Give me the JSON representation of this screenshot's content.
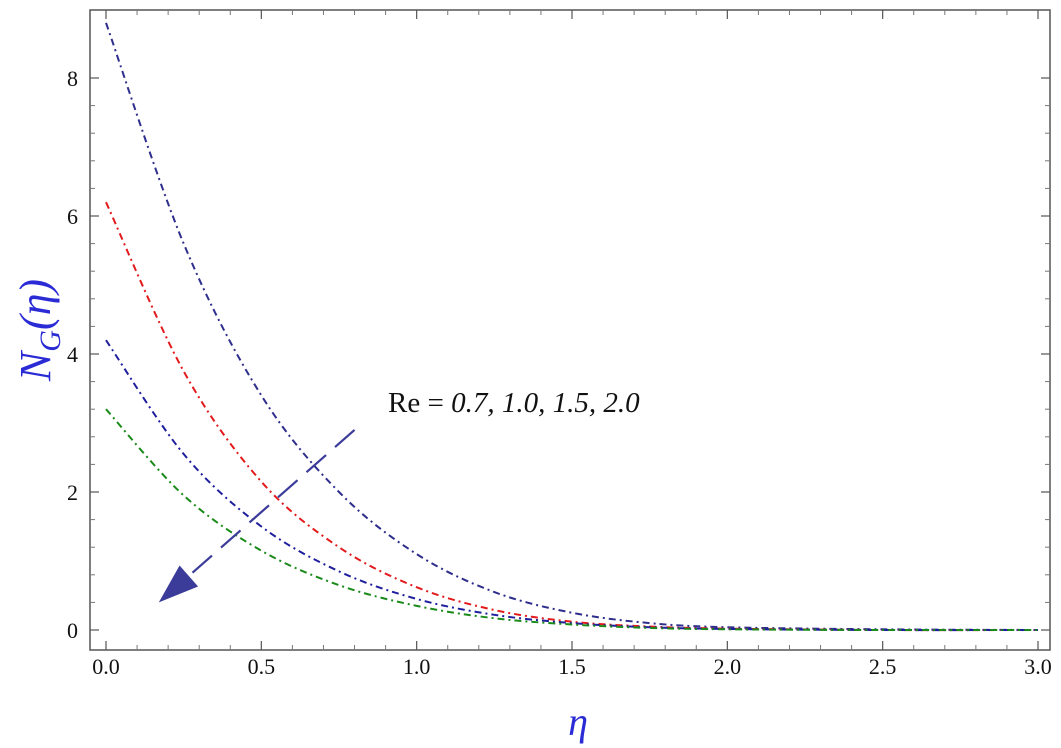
{
  "chart_data": {
    "type": "line",
    "xlabel": "η",
    "ylabel": {
      "main": "N",
      "sub": "G",
      "arg": "(η)"
    },
    "xlim": [
      0.0,
      3.0
    ],
    "ylim": [
      -0.2,
      9.0
    ],
    "xticks": [
      "0.0",
      "0.5",
      "1.0",
      "1.5",
      "2.0",
      "2.5",
      "3.0"
    ],
    "xtick_values": [
      0.0,
      0.5,
      1.0,
      1.5,
      2.0,
      2.5,
      3.0
    ],
    "yticks": [
      "0",
      "2",
      "4",
      "6",
      "8"
    ],
    "ytick_values": [
      0,
      2,
      4,
      6,
      8
    ],
    "grid": false,
    "annotation": {
      "prefix": "Re = ",
      "values": "0.7, 1.0, 1.5, 2.0",
      "arrow_from": [
        0.8,
        2.9
      ],
      "arrow_to": [
        0.17,
        0.4
      ]
    },
    "series": [
      {
        "color": "#2e2e8c",
        "x": [
          0.0,
          0.25,
          0.5,
          0.75,
          1.0,
          1.25,
          1.5,
          1.75,
          2.0,
          2.5,
          3.0
        ],
        "values": [
          8.8,
          5.6,
          3.4,
          2.0,
          1.1,
          0.55,
          0.25,
          0.1,
          0.04,
          0.01,
          0.0
        ]
      },
      {
        "color": "#e31a1c",
        "x": [
          0.0,
          0.25,
          0.5,
          0.75,
          1.0,
          1.25,
          1.5,
          1.75,
          2.0,
          2.5,
          3.0
        ],
        "values": [
          6.2,
          3.75,
          2.15,
          1.2,
          0.62,
          0.29,
          0.12,
          0.05,
          0.02,
          0.0,
          0.0
        ]
      },
      {
        "color": "#1f1f9e",
        "x": [
          0.0,
          0.25,
          0.5,
          0.75,
          1.0,
          1.25,
          1.5,
          1.75,
          2.0,
          2.5,
          3.0
        ],
        "values": [
          4.2,
          2.55,
          1.5,
          0.85,
          0.45,
          0.22,
          0.1,
          0.04,
          0.015,
          0.0,
          0.0
        ]
      },
      {
        "color": "#1a8a1a",
        "x": [
          0.0,
          0.25,
          0.5,
          0.75,
          1.0,
          1.25,
          1.5,
          1.75,
          2.0,
          2.5,
          3.0
        ],
        "values": [
          3.2,
          1.95,
          1.15,
          0.65,
          0.35,
          0.17,
          0.08,
          0.03,
          0.01,
          0.0,
          0.0
        ]
      }
    ]
  }
}
